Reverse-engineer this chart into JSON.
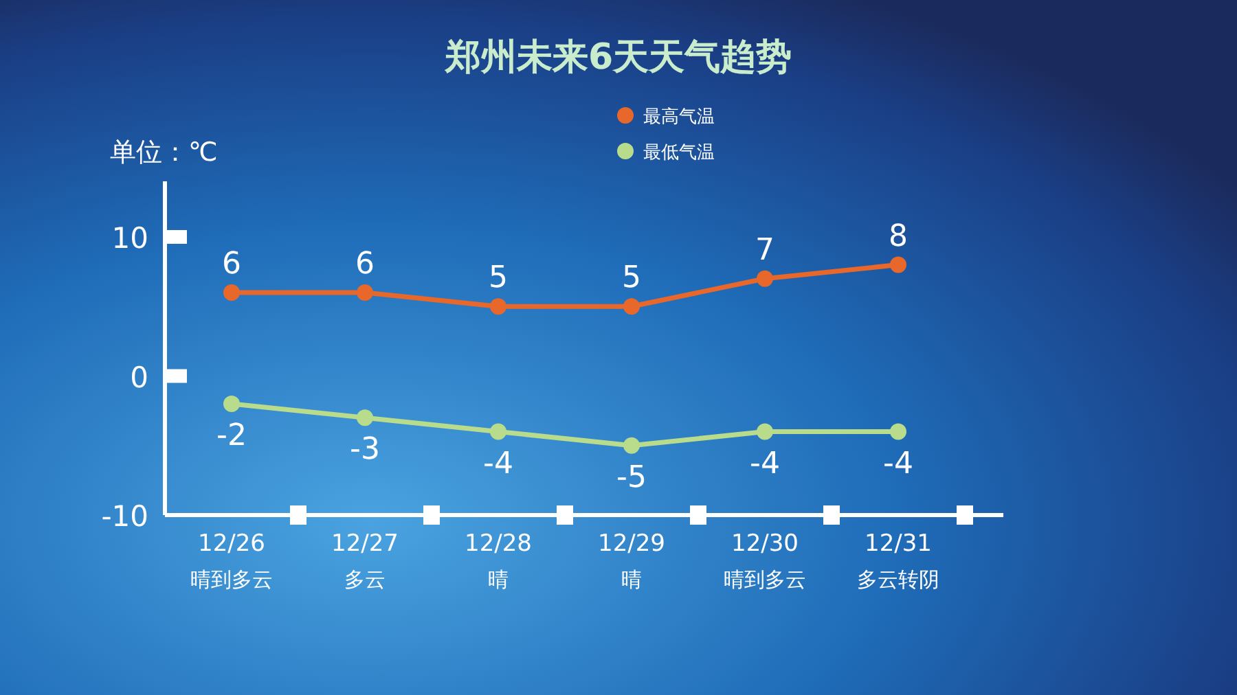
{
  "chart_data": {
    "type": "line",
    "title": "郑州未来6天天气趋势",
    "ylabel": "单位：℃",
    "categories": [
      "12/26\n晴到多云",
      "12/27\n多云",
      "12/28\n晴",
      "12/29\n晴",
      "12/30\n晴到多云",
      "12/31\n多云转阴"
    ],
    "series": [
      {
        "name": "最高气温",
        "color": "#e8672a",
        "values": [
          6,
          6,
          5,
          5,
          7,
          8
        ],
        "value_labels": [
          "6",
          "6",
          "5",
          "5",
          "7",
          "8"
        ]
      },
      {
        "name": "最低气温",
        "color": "#b8dc8c",
        "values": [
          -2,
          -3,
          -4,
          -5,
          -4,
          -4
        ],
        "value_labels": [
          "-2",
          "-3",
          "-4",
          "-5",
          "-4",
          "-4"
        ]
      }
    ],
    "ylim": [
      -10,
      14
    ],
    "yticks": [
      -10,
      0,
      10
    ],
    "legend": "top",
    "marker": "circle"
  }
}
